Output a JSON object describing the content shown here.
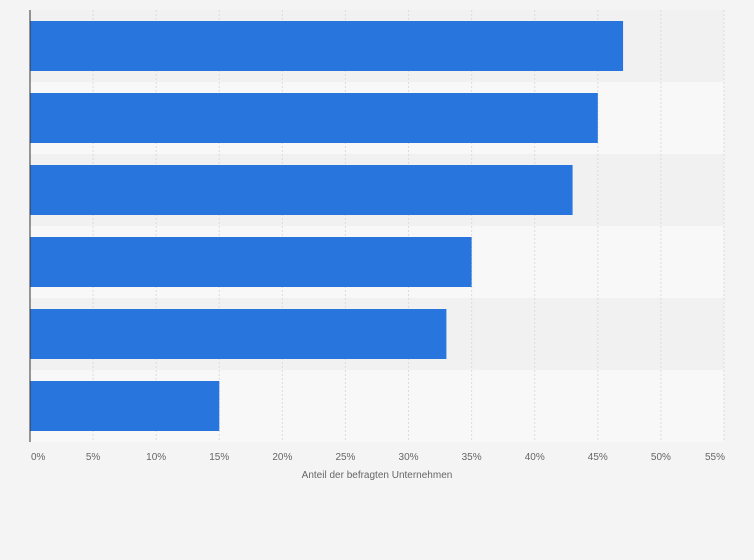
{
  "chart_data": {
    "type": "bar",
    "orientation": "horizontal",
    "title": "",
    "xlabel": "Anteil der befragten Unternehmen",
    "ylabel": "",
    "categories": [
      "",
      "",
      "",
      "",
      "",
      ""
    ],
    "values": [
      47,
      45,
      43,
      35,
      33,
      15
    ],
    "xlim": [
      0,
      55
    ],
    "x_ticks": [
      "0%",
      "5%",
      "10%",
      "15%",
      "20%",
      "25%",
      "30%",
      "35%",
      "40%",
      "45%",
      "50%",
      "55%"
    ],
    "grid": "vertical",
    "legend": "none",
    "colors": {
      "bar": "#2876dd",
      "band_dark": "#f1f1f1",
      "band_light": "#f8f8f8",
      "background": "#f4f4f4",
      "gridline": "#dcdcdc",
      "axis": "#333333"
    }
  }
}
